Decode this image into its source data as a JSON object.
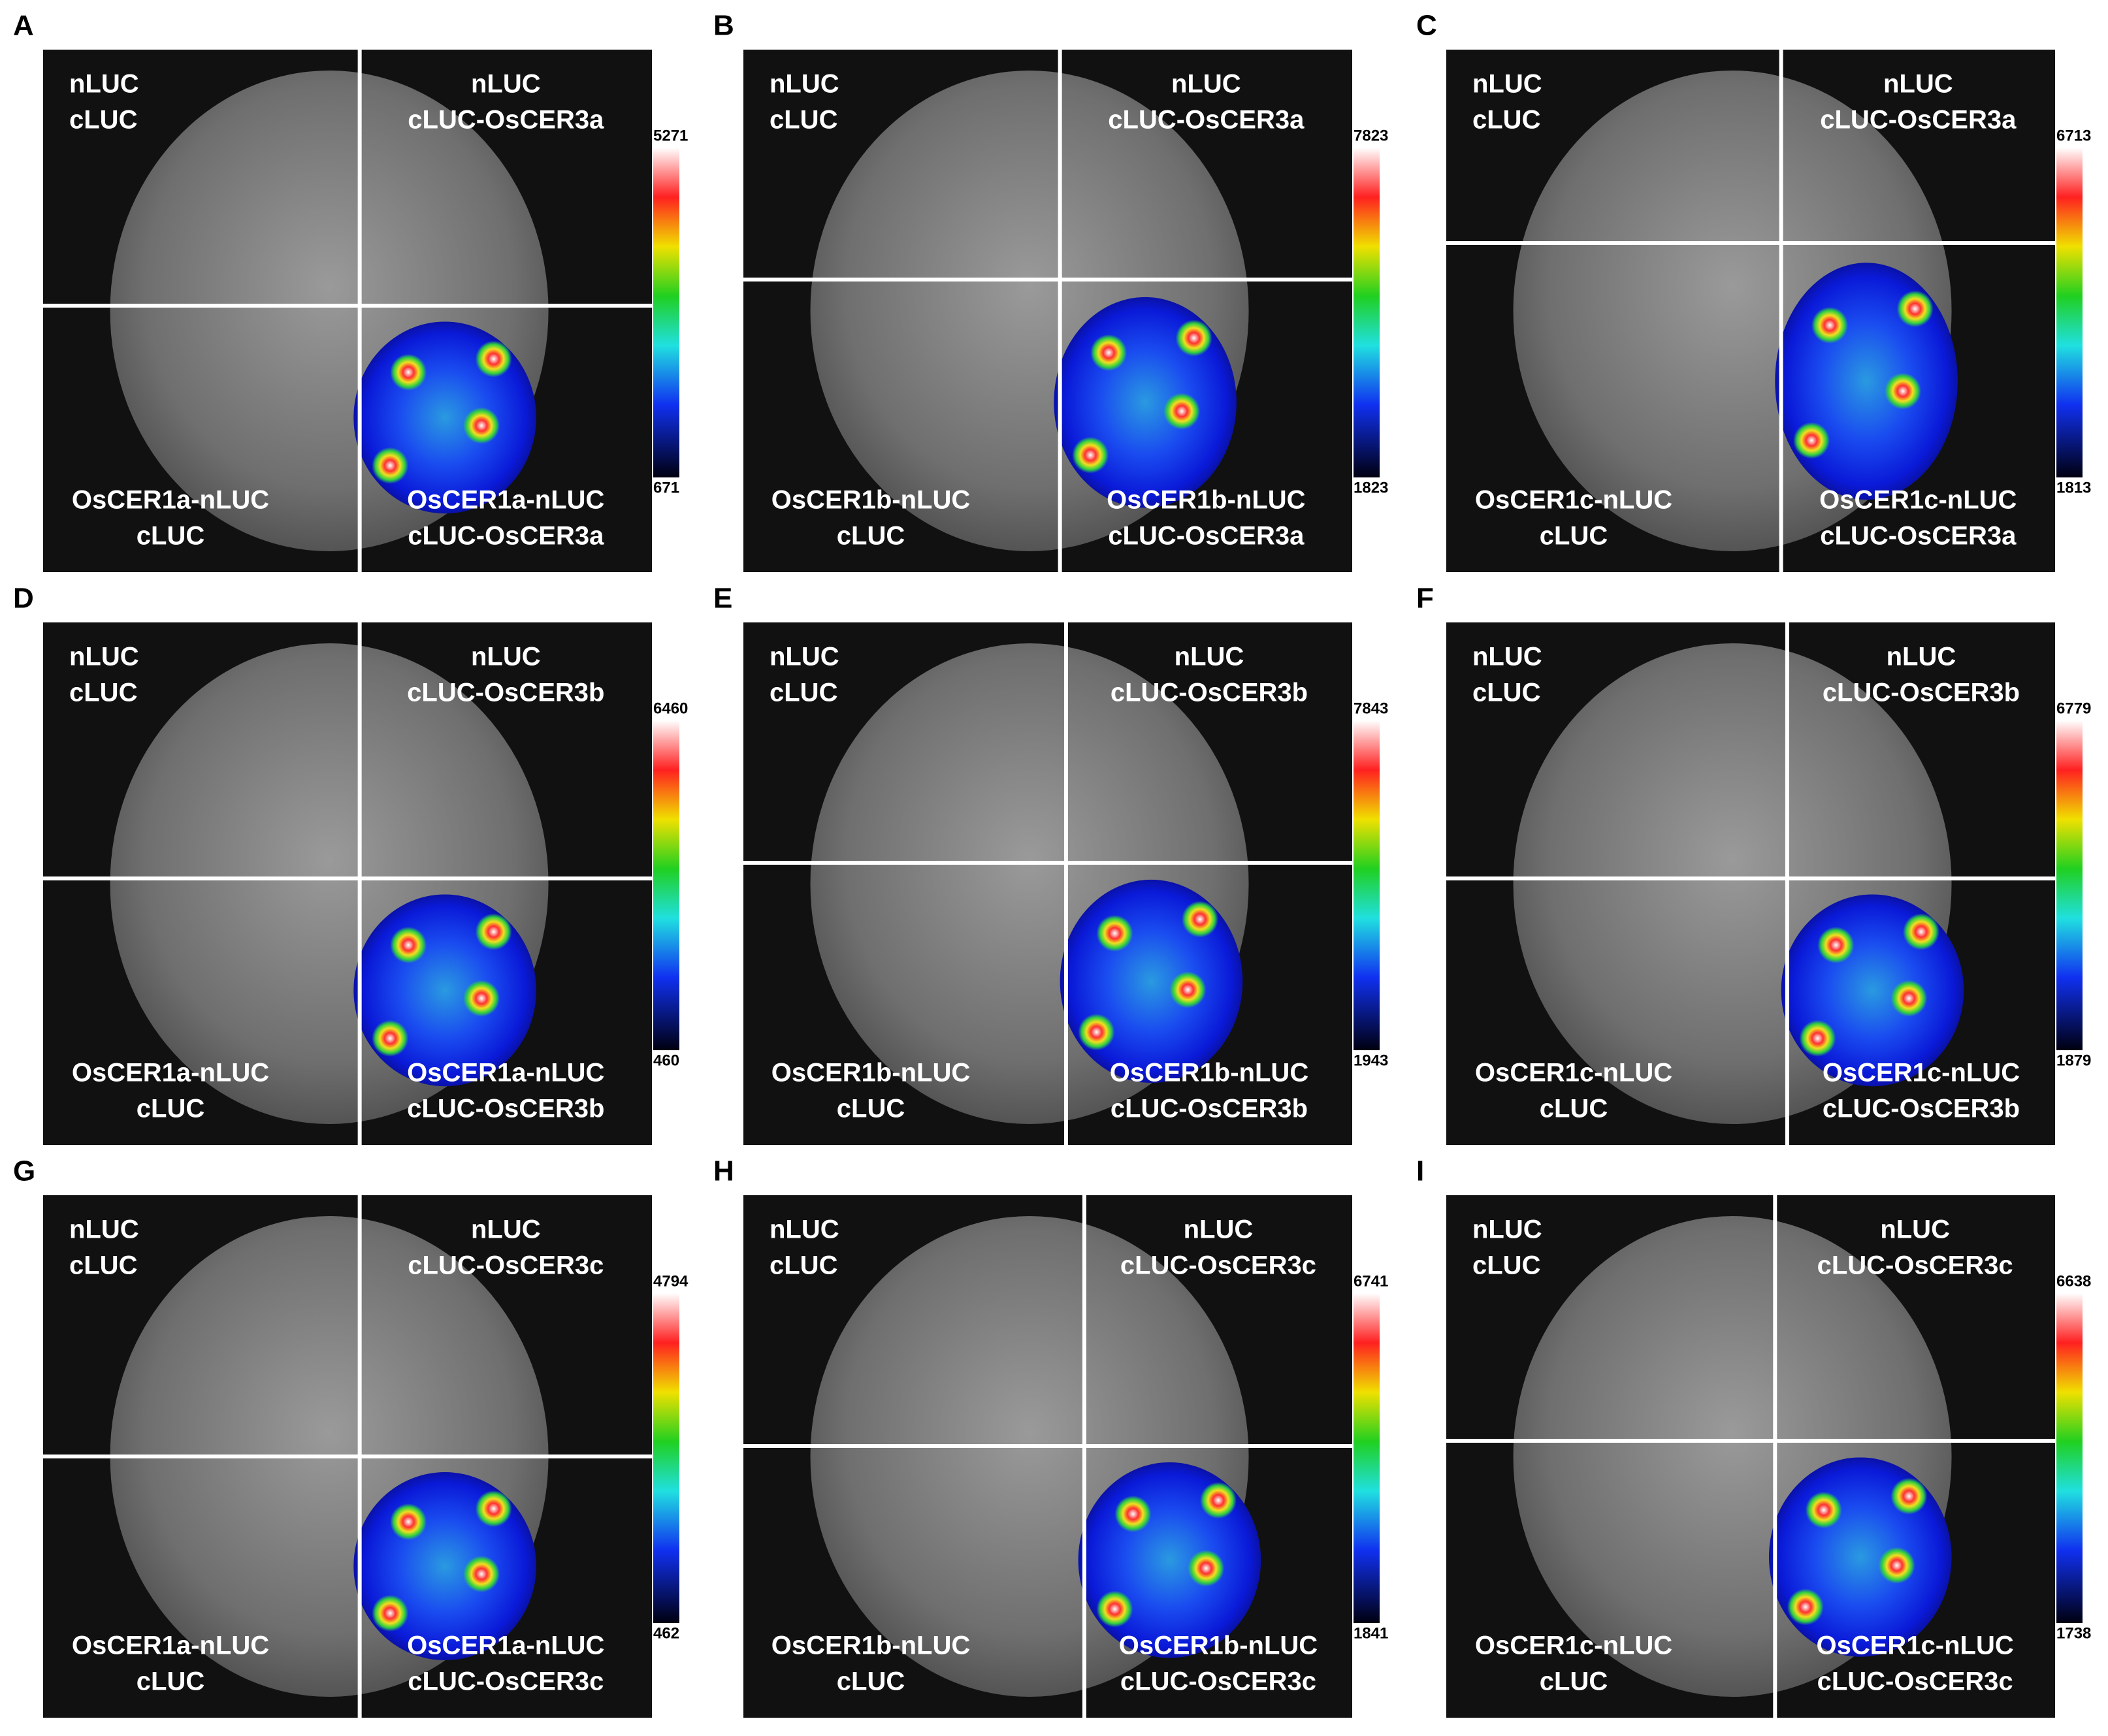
{
  "panels": [
    {
      "letter": "A",
      "top_left": [
        "nLUC",
        "cLUC"
      ],
      "top_right": [
        "nLUC",
        "cLUC-OsCER3a"
      ],
      "bottom_left": [
        "OsCER1a-nLUC",
        "cLUC"
      ],
      "bottom_right": [
        "OsCER1a-nLUC",
        "cLUC-OsCER3a"
      ],
      "scale_max": 5271,
      "scale_min": 671
    },
    {
      "letter": "B",
      "top_left": [
        "nLUC",
        "cLUC"
      ],
      "top_right": [
        "nLUC",
        "cLUC-OsCER3a"
      ],
      "bottom_left": [
        "OsCER1b-nLUC",
        "cLUC"
      ],
      "bottom_right": [
        "OsCER1b-nLUC",
        "cLUC-OsCER3a"
      ],
      "scale_max": 7823,
      "scale_min": 1823
    },
    {
      "letter": "C",
      "top_left": [
        "nLUC",
        "cLUC"
      ],
      "top_right": [
        "nLUC",
        "cLUC-OsCER3a"
      ],
      "bottom_left": [
        "OsCER1c-nLUC",
        "cLUC"
      ],
      "bottom_right": [
        "OsCER1c-nLUC",
        "cLUC-OsCER3a"
      ],
      "scale_max": 6713,
      "scale_min": 1813
    },
    {
      "letter": "D",
      "top_left": [
        "nLUC",
        "cLUC"
      ],
      "top_right": [
        "nLUC",
        "cLUC-OsCER3b"
      ],
      "bottom_left": [
        "OsCER1a-nLUC",
        "cLUC"
      ],
      "bottom_right": [
        "OsCER1a-nLUC",
        "cLUC-OsCER3b"
      ],
      "scale_max": 6460,
      "scale_min": 460
    },
    {
      "letter": "E",
      "top_left": [
        "nLUC",
        "cLUC"
      ],
      "top_right": [
        "nLUC",
        "cLUC-OsCER3b"
      ],
      "bottom_left": [
        "OsCER1b-nLUC",
        "cLUC"
      ],
      "bottom_right": [
        "OsCER1b-nLUC",
        "cLUC-OsCER3b"
      ],
      "scale_max": 7843,
      "scale_min": 1943
    },
    {
      "letter": "F",
      "top_left": [
        "nLUC",
        "cLUC"
      ],
      "top_right": [
        "nLUC",
        "cLUC-OsCER3b"
      ],
      "bottom_left": [
        "OsCER1c-nLUC",
        "cLUC"
      ],
      "bottom_right": [
        "OsCER1c-nLUC",
        "cLUC-OsCER3b"
      ],
      "scale_max": 6779,
      "scale_min": 1879
    },
    {
      "letter": "G",
      "top_left": [
        "nLUC",
        "cLUC"
      ],
      "top_right": [
        "nLUC",
        "cLUC-OsCER3c"
      ],
      "bottom_left": [
        "OsCER1a-nLUC",
        "cLUC"
      ],
      "bottom_right": [
        "OsCER1a-nLUC",
        "cLUC-OsCER3c"
      ],
      "scale_max": 4794,
      "scale_min": 462
    },
    {
      "letter": "H",
      "top_left": [
        "nLUC",
        "cLUC"
      ],
      "top_right": [
        "nLUC",
        "cLUC-OsCER3c"
      ],
      "bottom_left": [
        "OsCER1b-nLUC",
        "cLUC"
      ],
      "bottom_right": [
        "OsCER1b-nLUC",
        "cLUC-OsCER3c"
      ],
      "scale_max": 6741,
      "scale_min": 1841
    },
    {
      "letter": "I",
      "top_left": [
        "nLUC",
        "cLUC"
      ],
      "top_right": [
        "nLUC",
        "cLUC-OsCER3c"
      ],
      "bottom_left": [
        "OsCER1c-nLUC",
        "cLUC"
      ],
      "bottom_right": [
        "OsCER1c-nLUC",
        "cLUC-OsCER3c"
      ],
      "scale_max": 6638,
      "scale_min": 1738
    }
  ]
}
